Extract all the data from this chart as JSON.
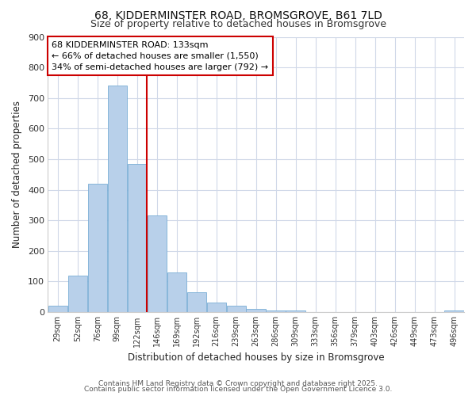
{
  "title1": "68, KIDDERMINSTER ROAD, BROMSGROVE, B61 7LD",
  "title2": "Size of property relative to detached houses in Bromsgrove",
  "xlabel": "Distribution of detached houses by size in Bromsgrove",
  "ylabel": "Number of detached properties",
  "bin_labels": [
    "29sqm",
    "52sqm",
    "76sqm",
    "99sqm",
    "122sqm",
    "146sqm",
    "169sqm",
    "192sqm",
    "216sqm",
    "239sqm",
    "263sqm",
    "286sqm",
    "309sqm",
    "333sqm",
    "356sqm",
    "379sqm",
    "403sqm",
    "426sqm",
    "449sqm",
    "473sqm",
    "496sqm"
  ],
  "bar_heights": [
    20,
    120,
    420,
    740,
    485,
    315,
    130,
    65,
    30,
    20,
    10,
    5,
    5,
    0,
    0,
    0,
    0,
    0,
    0,
    0,
    5
  ],
  "bar_color": "#b8d0ea",
  "bar_edge_color": "#7aaed6",
  "vline_x": 4.0,
  "vline_color": "#cc0000",
  "annotation_text": "68 KIDDERMINSTER ROAD: 133sqm\n← 66% of detached houses are smaller (1,550)\n34% of semi-detached houses are larger (792) →",
  "annotation_box_color": "#ffffff",
  "annotation_box_edge": "#cc0000",
  "plot_bg_color": "#ffffff",
  "fig_bg_color": "#ffffff",
  "grid_color": "#d0d8e8",
  "ylim": [
    0,
    900
  ],
  "yticks": [
    0,
    100,
    200,
    300,
    400,
    500,
    600,
    700,
    800,
    900
  ],
  "footer1": "Contains HM Land Registry data © Crown copyright and database right 2025.",
  "footer2": "Contains public sector information licensed under the Open Government Licence 3.0."
}
